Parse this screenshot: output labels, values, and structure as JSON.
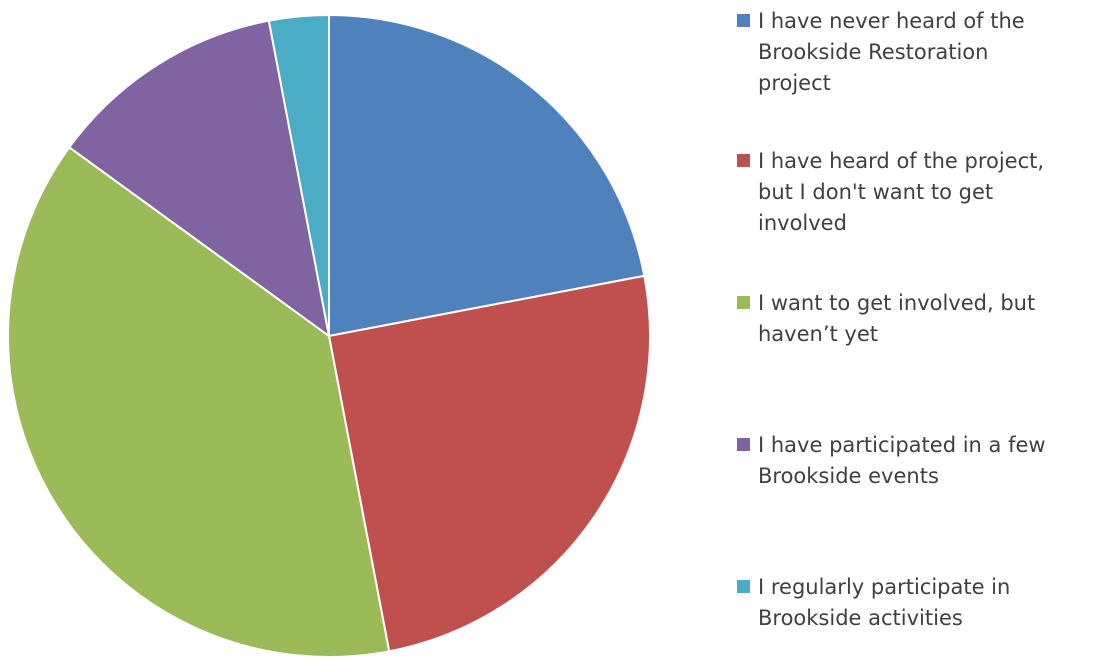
{
  "chart_data": {
    "type": "pie",
    "title": "",
    "legend_position": "right",
    "start_angle": "top",
    "direction": "clockwise",
    "slices": [
      {
        "label": "I have never heard of the\nBrookside Restoration\nproject",
        "value": 22,
        "color": "#4F81BD"
      },
      {
        "label": "I have heard of the project,\nbut I don't want to get\ninvolved",
        "value": 25,
        "color": "#C0504D"
      },
      {
        "label": "I want to get involved, but\nhaven’t yet",
        "value": 38,
        "color": "#9BBB59"
      },
      {
        "label": "I have participated in a few\nBrookside events",
        "value": 12,
        "color": "#8064A2"
      },
      {
        "label": "I regularly participate in\nBrookside activities",
        "value": 3,
        "color": "#4BACC6"
      }
    ]
  }
}
